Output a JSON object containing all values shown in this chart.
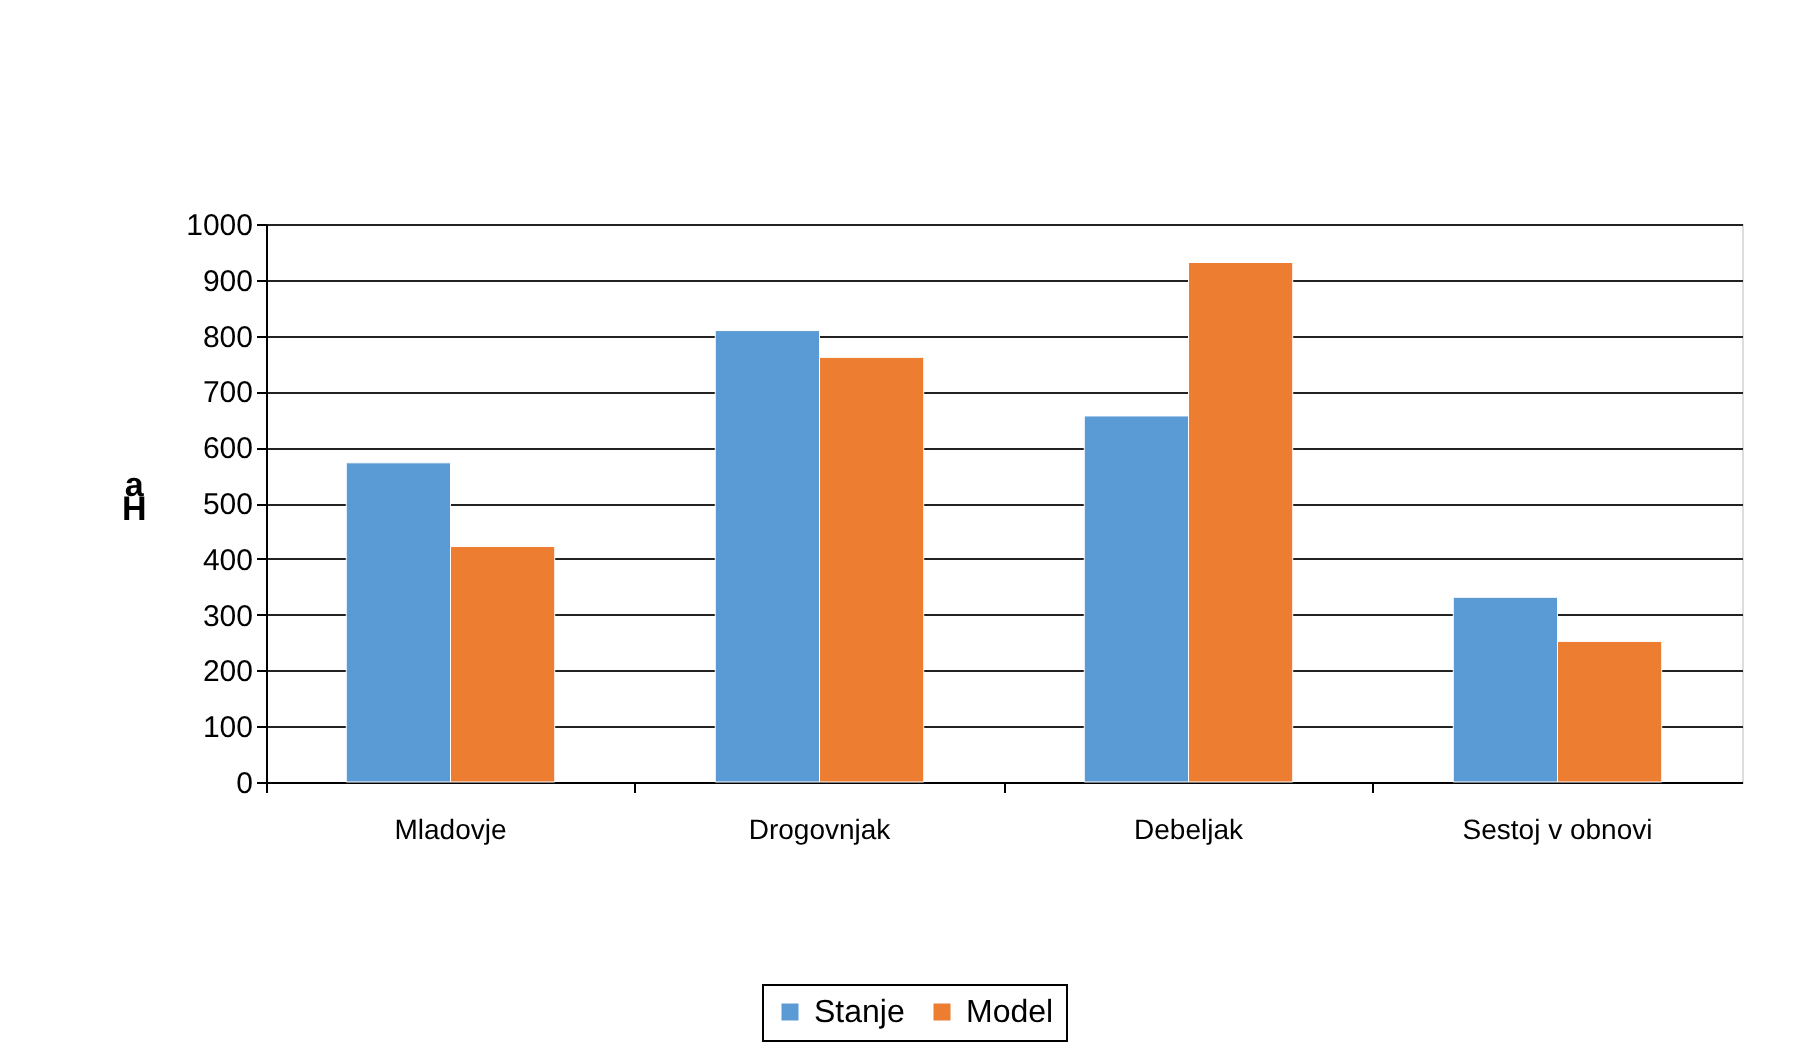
{
  "chart_data": {
    "type": "bar",
    "ylabel": "aH",
    "categories": [
      "Mladovje",
      "Drogovnjak",
      "Debeljak",
      "Sestoj v obnovi"
    ],
    "series": [
      {
        "name": "Stanje",
        "color": "#5b9bd5",
        "values": [
          572,
          809,
          656,
          331
        ]
      },
      {
        "name": "Model",
        "color": "#ed7d31",
        "values": [
          422,
          761,
          931,
          252
        ]
      }
    ],
    "ylim": [
      0,
      1000
    ],
    "yticks": [
      0,
      100,
      200,
      300,
      400,
      500,
      600,
      700,
      800,
      900,
      1000
    ],
    "grid": "y",
    "legend": "bottom"
  }
}
